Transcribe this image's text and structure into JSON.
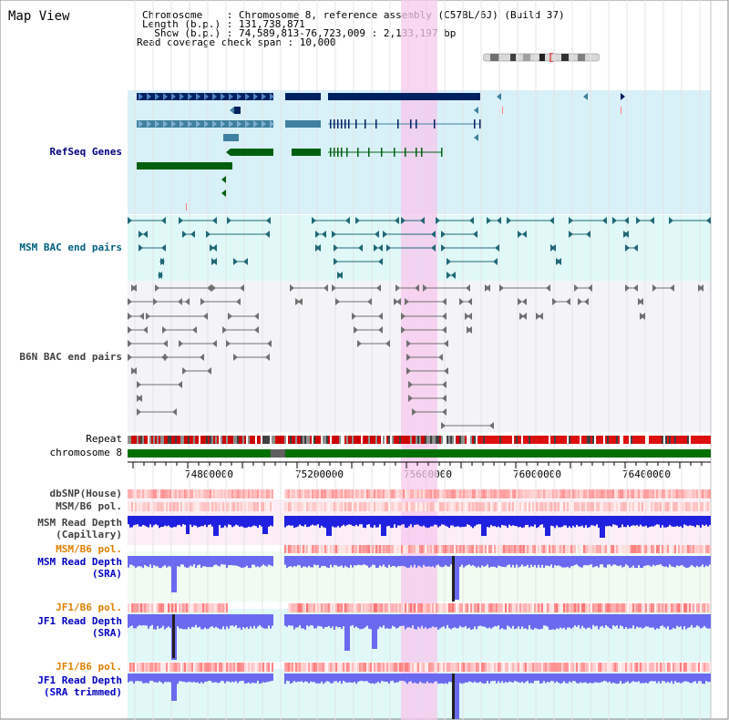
{
  "window": {
    "title": "Map View"
  },
  "header": {
    "lines": [
      "Chromosome    : Chromosome 8, reference assembly (C57BL/6J) (Build 37)",
      "Length (b.p.) : 131,738,871",
      "  Show (b.p.) : 74,589,813-76,723,009 : 2,133,197 bp",
      "Read coverage check span : 10,000"
    ]
  },
  "tracks": {
    "refseq": "RefSeq Genes",
    "msm_bac": "MSM BAC end pairs",
    "b6n_bac": "B6N BAC end pairs",
    "repeat": "Repeat",
    "chromosome": "chromosome 8",
    "dbsnp": "dbSNP(House)",
    "msm_b6_pol_1": "MSM/B6 pol.",
    "msm_depth_cap_1": "MSM Read Depth",
    "msm_depth_cap_2": "(Capillary)",
    "msm_b6_pol_2": "MSM/B6 pol.",
    "msm_depth_sra_1": "MSM Read Depth",
    "msm_depth_sra_2": "(SRA)",
    "jf1_b6_pol_1": "JF1/B6 pol.",
    "jf1_depth_sra_1": "JF1 Read Depth",
    "jf1_depth_sra_2": "(SRA)",
    "jf1_b6_pol_2": "JF1/B6 pol.",
    "jf1_depth_trim_1": "JF1 Read Depth",
    "jf1_depth_trim_2": "(SRA trimmed)"
  },
  "axis": {
    "ticks": [
      "74800000",
      "75200000",
      "75600000",
      "76000000",
      "76400000"
    ]
  },
  "colors": {
    "refseq_label": "#000080",
    "msm_label": "#006080",
    "b6n_label": "#404040",
    "pol_msm_orange": "#e08000",
    "depth_label": "#0000c0",
    "highlight": "#f7d0f0",
    "chromosome_bar": "#007000"
  }
}
